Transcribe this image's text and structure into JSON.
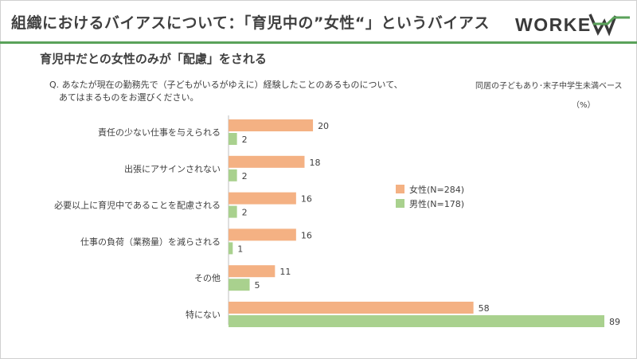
{
  "header": {
    "title": "組織におけるバイアスについて：「育児中の”女性“」というバイアス",
    "logo_text": "WORKEVA",
    "accent_color": "#5aa25a"
  },
  "subtitle": "育児中だとの女性のみが「配慮」をされる",
  "question": {
    "line1": "Q. あなたが現在の勤務先で（子どもがいるがゆえに）経験したことのあるものについて、",
    "line2": "あてはまるものをお選びください。"
  },
  "base_note": "同居の子どもあり･末子中学生未満ベース",
  "unit_note": "（%）",
  "chart_data": {
    "type": "bar",
    "orientation": "horizontal",
    "categories": [
      "責任の少ない仕事を与えられる",
      "出張にアサインされない",
      "必要以上に育児中であることを配慮される",
      "仕事の負荷（業務量）を減らされる",
      "その他",
      "特にない"
    ],
    "series": [
      {
        "name": "女性(N=284)",
        "color": "#f4b183",
        "values": [
          20,
          18,
          16,
          16,
          11,
          58
        ]
      },
      {
        "name": "男性(N=178)",
        "color": "#a9d18e",
        "values": [
          2,
          2,
          2,
          1,
          5,
          89
        ]
      }
    ],
    "xlim": [
      0,
      89
    ],
    "legend_position": "right",
    "grid": false
  }
}
